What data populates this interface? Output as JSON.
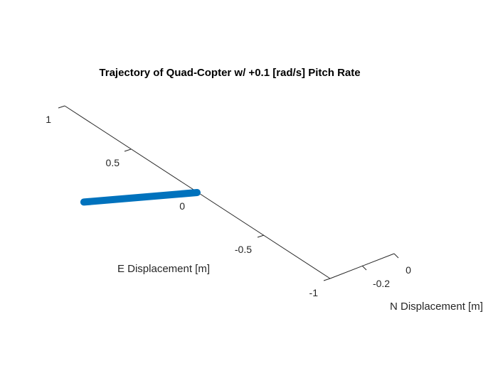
{
  "chart_data": {
    "type": "line",
    "title": "Trajectory of Quad-Copter w/ +0.1 [rad/s] Pitch Rate",
    "xlabel": "E Displacement [m]",
    "ylabel": "N Displacement [m]",
    "x_ticks": [
      "1",
      "0.5",
      "0",
      "-0.5",
      "-1"
    ],
    "y_ticks": [
      "-0.2",
      "0"
    ],
    "grid": false,
    "series": [
      {
        "color": "#0072BD",
        "points": [
          {
            "e": 0.0,
            "n": 0.0
          },
          {
            "e": 0.25,
            "n": -0.25
          }
        ]
      }
    ]
  }
}
